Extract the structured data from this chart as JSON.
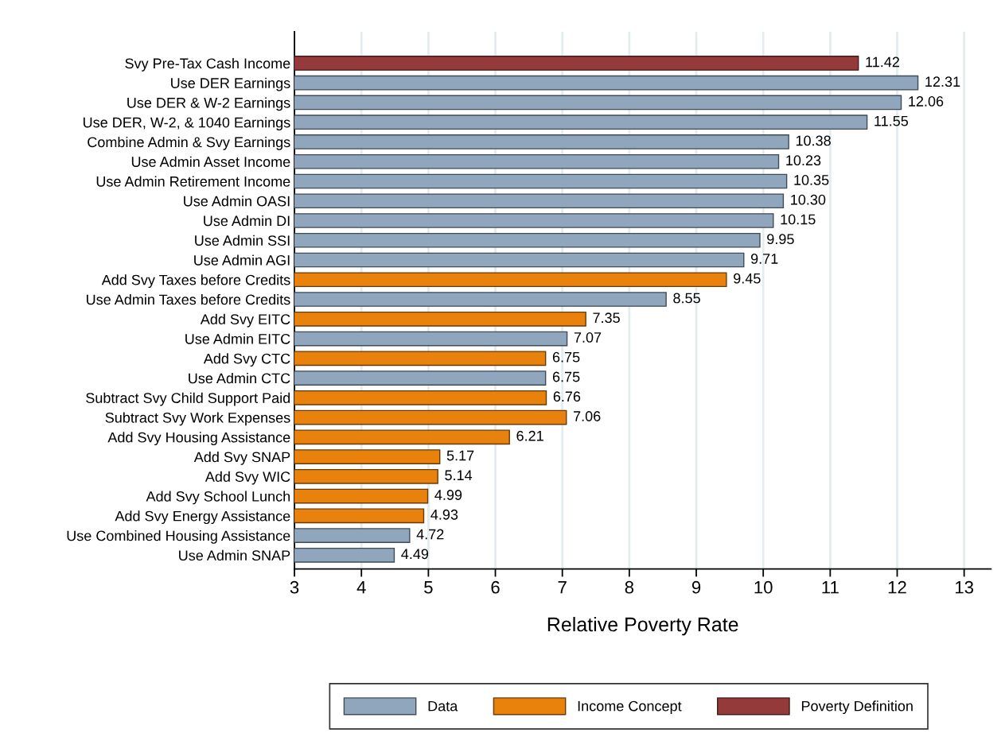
{
  "chart_data": {
    "type": "bar",
    "orientation": "horizontal",
    "xlabel": "Relative Poverty Rate",
    "categories": [
      "Svy Pre-Tax Cash Income",
      "Use DER Earnings",
      "Use DER & W-2 Earnings",
      "Use DER, W-2, & 1040 Earnings",
      "Combine Admin & Svy Earnings",
      "Use Admin Asset Income",
      "Use Admin Retirement Income",
      "Use Admin OASI",
      "Use Admin DI",
      "Use Admin SSI",
      "Use Admin AGI",
      "Add Svy Taxes before Credits",
      "Use Admin Taxes before Credits",
      "Add Svy EITC",
      "Use Admin EITC",
      "Add Svy CTC",
      "Use Admin CTC",
      "Subtract Svy Child Support Paid",
      "Subtract Svy Work Expenses",
      "Add Svy Housing Assistance",
      "Add Svy SNAP",
      "Add Svy WIC",
      "Add Svy School Lunch",
      "Add Svy Energy Assistance",
      "Use Combined Housing Assistance",
      "Use Admin SNAP"
    ],
    "series": [
      {
        "name": "Data",
        "color": "#8fa6bd",
        "values": [
          null,
          12.31,
          12.06,
          11.55,
          10.38,
          10.23,
          10.35,
          10.3,
          10.15,
          9.95,
          9.71,
          null,
          8.55,
          null,
          7.07,
          null,
          6.75,
          null,
          null,
          null,
          null,
          null,
          null,
          null,
          4.72,
          4.49
        ],
        "value_labels": [
          null,
          "12.31",
          "12.06",
          "11.55",
          "10.38",
          "10.23",
          "10.35",
          "10.30",
          "10.15",
          "9.95",
          "9.71",
          null,
          "8.55",
          null,
          "7.07",
          null,
          "6.75",
          null,
          null,
          null,
          null,
          null,
          null,
          null,
          "4.72",
          "4.49"
        ]
      },
      {
        "name": "Income Concept",
        "color": "#e8820c",
        "values": [
          null,
          null,
          null,
          null,
          null,
          null,
          null,
          null,
          null,
          null,
          null,
          9.45,
          null,
          7.35,
          null,
          6.75,
          null,
          6.76,
          7.06,
          6.21,
          5.17,
          5.14,
          4.99,
          4.93,
          null,
          null
        ],
        "value_labels": [
          null,
          null,
          null,
          null,
          null,
          null,
          null,
          null,
          null,
          null,
          null,
          "9.45",
          null,
          "7.35",
          null,
          "6.75",
          null,
          "6.76",
          "7.06",
          "6.21",
          "5.17",
          "5.14",
          "4.99",
          "4.93",
          null,
          null
        ]
      },
      {
        "name": "Poverty Definition",
        "color": "#943a3a",
        "values": [
          11.42,
          null,
          null,
          null,
          null,
          null,
          null,
          null,
          null,
          null,
          null,
          null,
          null,
          null,
          null,
          null,
          null,
          null,
          null,
          null,
          null,
          null,
          null,
          null,
          null,
          null
        ],
        "value_labels": [
          "11.42",
          null,
          null,
          null,
          null,
          null,
          null,
          null,
          null,
          null,
          null,
          null,
          null,
          null,
          null,
          null,
          null,
          null,
          null,
          null,
          null,
          null,
          null,
          null,
          null,
          null
        ]
      }
    ],
    "xlim": [
      3,
      13.4
    ],
    "xticks": [
      3,
      4,
      5,
      6,
      7,
      8,
      9,
      10,
      11,
      12,
      13
    ],
    "grid": "x",
    "legend": "bottom"
  }
}
